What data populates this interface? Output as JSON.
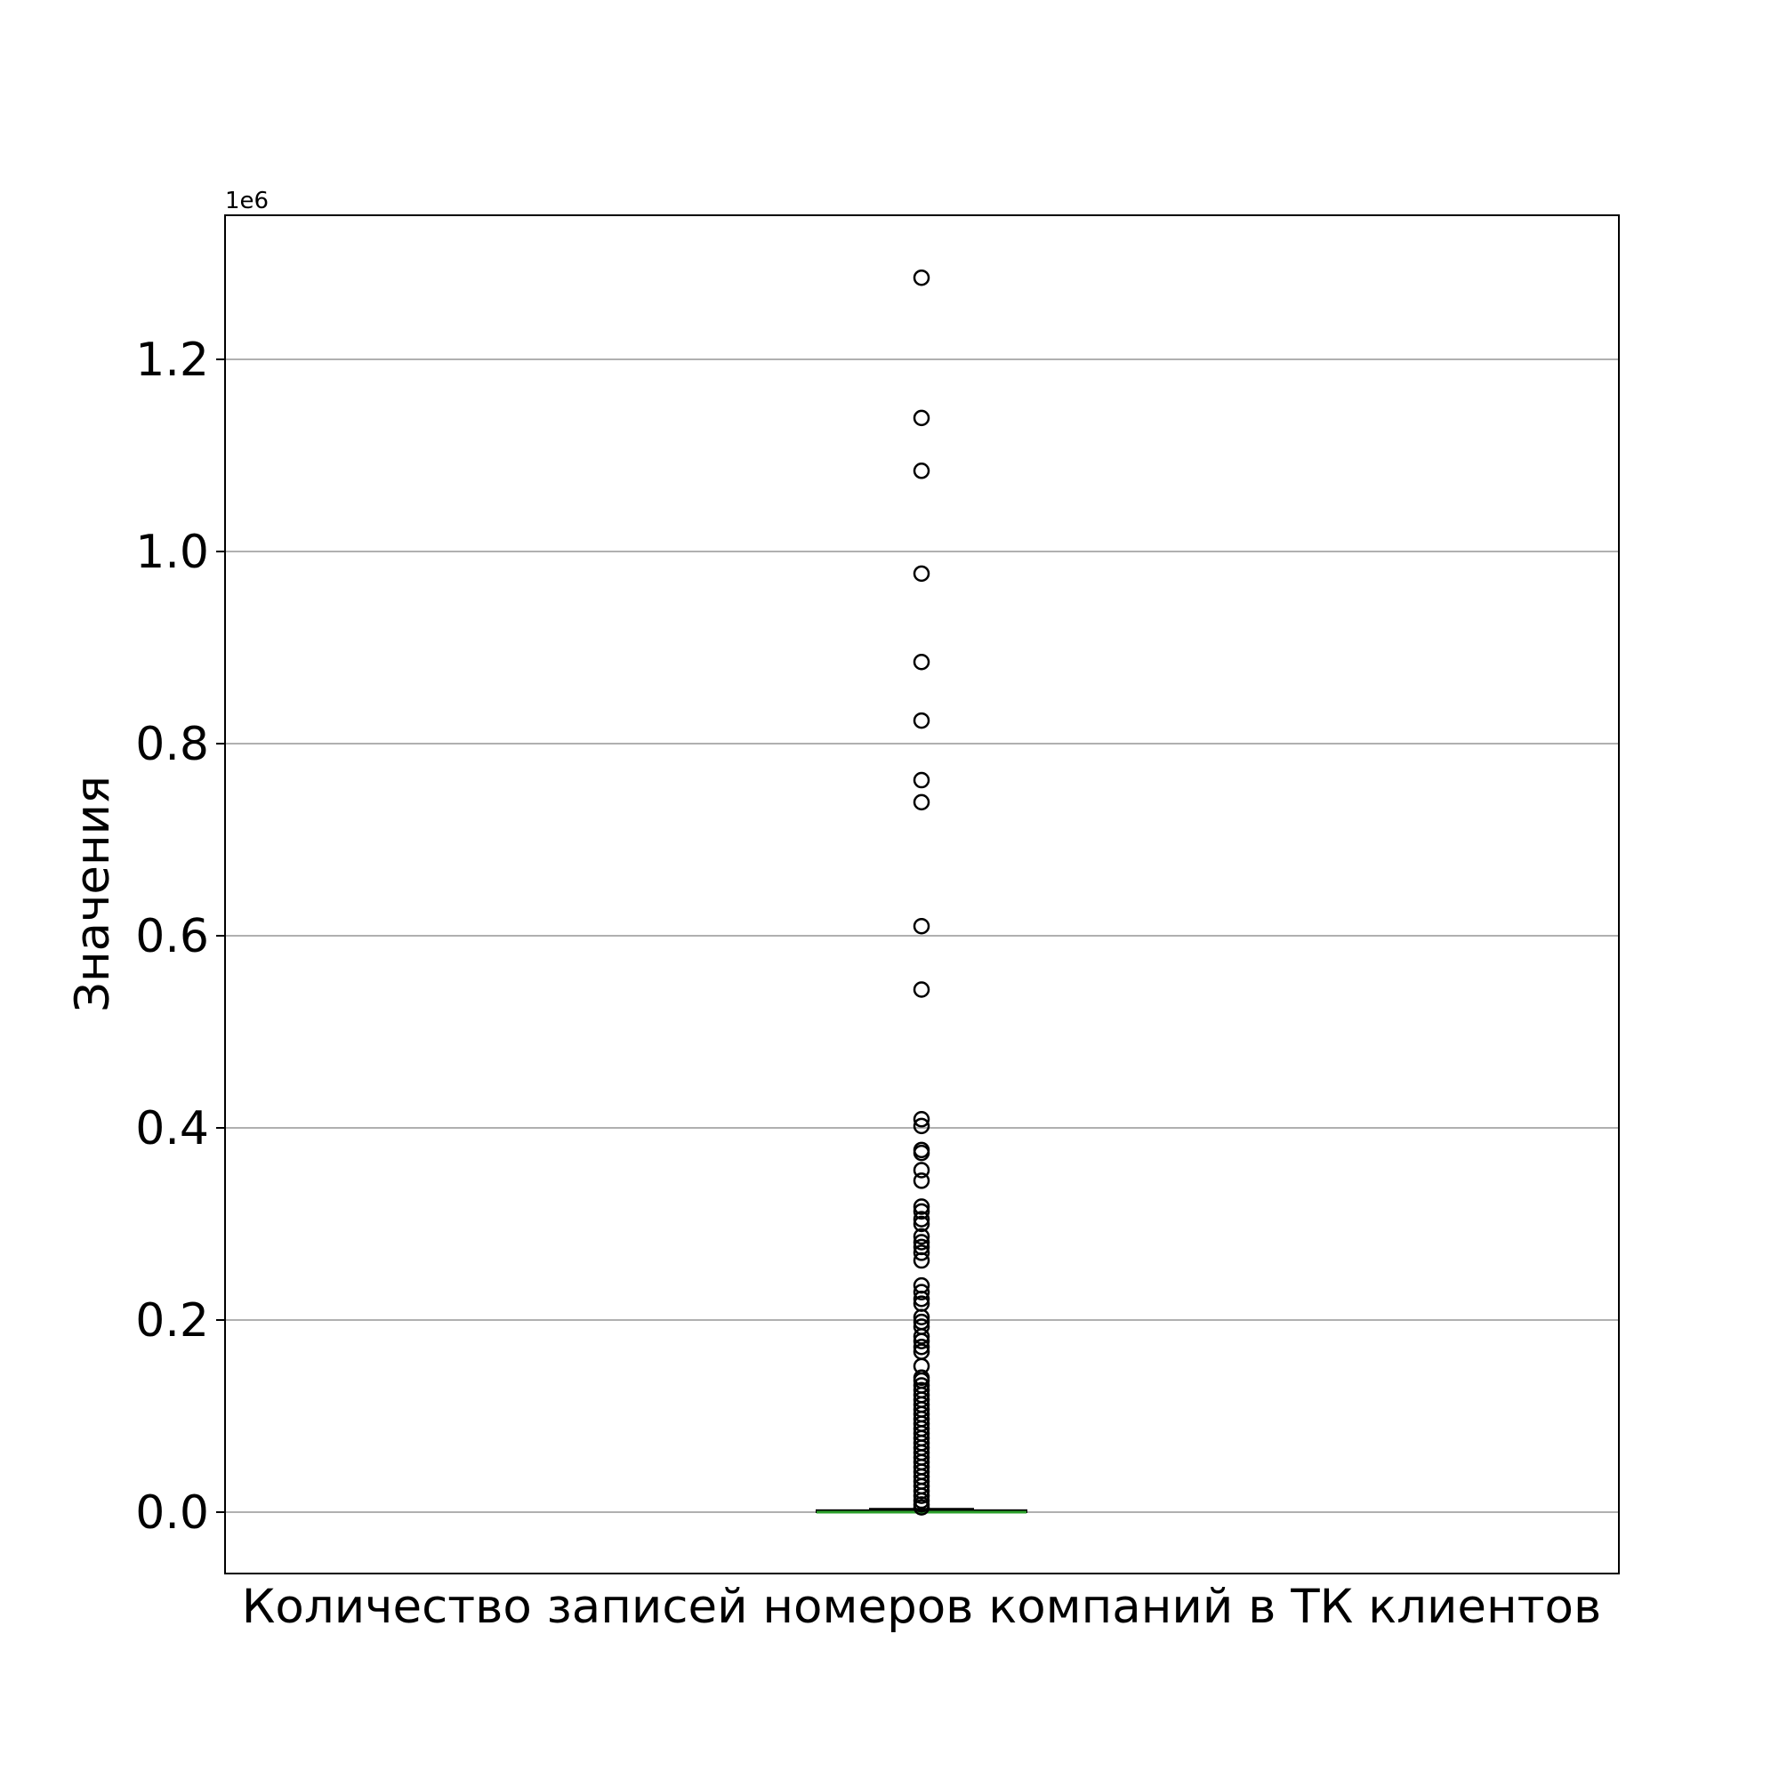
{
  "chart_data": {
    "type": "box",
    "xlabel": "Количество записей номеров компаний в ТК клиентов",
    "ylabel": "Значения",
    "y_offset_text": "1e6",
    "y_scale_factor": 1000000,
    "ylim": [
      -0.064,
      1.35
    ],
    "yticks": [
      0.0,
      0.2,
      0.4,
      0.6,
      0.8,
      1.0,
      1.2
    ],
    "ytick_labels": [
      "0.0",
      "0.2",
      "0.4",
      "0.6",
      "0.8",
      "1.0",
      "1.2"
    ],
    "grid": "horizontal",
    "box": {
      "min": 0,
      "q1": 0,
      "median": 0,
      "q3": 0.002,
      "whisker_high": 0.003
    },
    "outliers": [
      1.285,
      1.139,
      1.084,
      0.977,
      0.885,
      0.824,
      0.762,
      0.739,
      0.61,
      0.544,
      0.409,
      0.402,
      0.377,
      0.374,
      0.356,
      0.345,
      0.318,
      0.313,
      0.305,
      0.3,
      0.287,
      0.281,
      0.276,
      0.27,
      0.262,
      0.236,
      0.229,
      0.222,
      0.217,
      0.203,
      0.198,
      0.193,
      0.183,
      0.178,
      0.172,
      0.167,
      0.152,
      0.14,
      0.137,
      0.132,
      0.127,
      0.122,
      0.117,
      0.112,
      0.107,
      0.102,
      0.097,
      0.092,
      0.087,
      0.082,
      0.077,
      0.072,
      0.067,
      0.062,
      0.057,
      0.052,
      0.047,
      0.042,
      0.037,
      0.032,
      0.027,
      0.022,
      0.017,
      0.012,
      0.008,
      0.005
    ],
    "colors": {
      "median": "#2ca02c",
      "box": "#000000",
      "grid": "#b0b0b0",
      "outlier_edge": "#000000"
    }
  }
}
